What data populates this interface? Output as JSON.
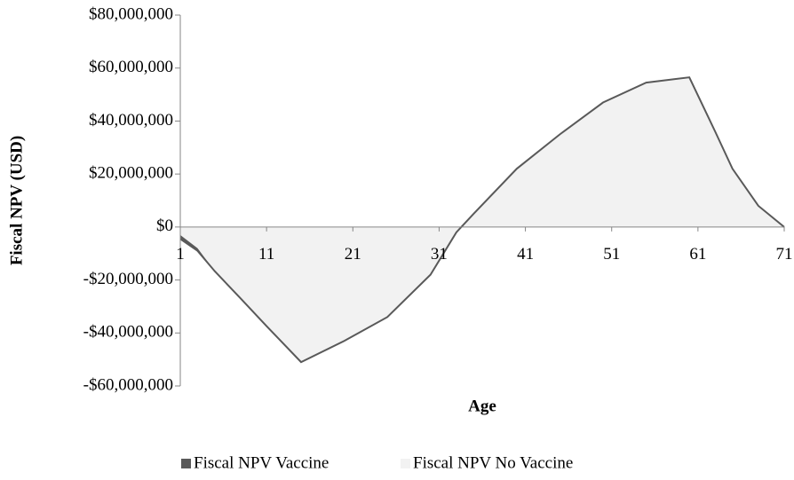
{
  "chart_data": {
    "type": "area",
    "y_label": "Fiscal NPV (USD)",
    "x_label": "Age",
    "x": [
      1,
      3,
      5,
      8,
      11,
      15,
      20,
      25,
      30,
      33,
      35,
      40,
      45,
      50,
      55,
      60,
      63,
      65,
      68,
      71
    ],
    "series": [
      {
        "name": "Fiscal NPV Vaccine",
        "color": "#595959",
        "values": [
          -4500000,
          -9000000,
          -16700000,
          -27000000,
          -37400000,
          -51000000,
          -43000000,
          -34000000,
          -18000000,
          -2000000,
          5000000,
          22000000,
          35000000,
          47000000,
          54500000,
          56500000,
          36000000,
          22000000,
          8000000,
          0
        ]
      },
      {
        "name": "Fiscal NPV No Vaccine",
        "color": "#f2f2f2",
        "values": [
          -3000000,
          -8000000,
          -16700000,
          -27000000,
          -37400000,
          -51000000,
          -43000000,
          -34000000,
          -18000000,
          -2000000,
          5000000,
          22000000,
          35000000,
          47000000,
          54500000,
          56500000,
          36000000,
          22000000,
          8000000,
          0
        ]
      }
    ],
    "xlim": [
      1,
      71
    ],
    "xticks": [
      1,
      11,
      21,
      31,
      41,
      51,
      61,
      71
    ],
    "ylim": [
      -60000000,
      80000000
    ],
    "yticks": [
      {
        "value": -60000000,
        "label": "-$60,000,000"
      },
      {
        "value": -40000000,
        "label": "-$40,000,000"
      },
      {
        "value": -20000000,
        "label": "-$20,000,000"
      },
      {
        "value": 0,
        "label": "$0"
      },
      {
        "value": 20000000,
        "label": "$20,000,000"
      },
      {
        "value": 40000000,
        "label": "$40,000,000"
      },
      {
        "value": 60000000,
        "label": "$60,000,000"
      },
      {
        "value": 80000000,
        "label": "$80,000,000"
      }
    ],
    "legend": "bottom"
  }
}
